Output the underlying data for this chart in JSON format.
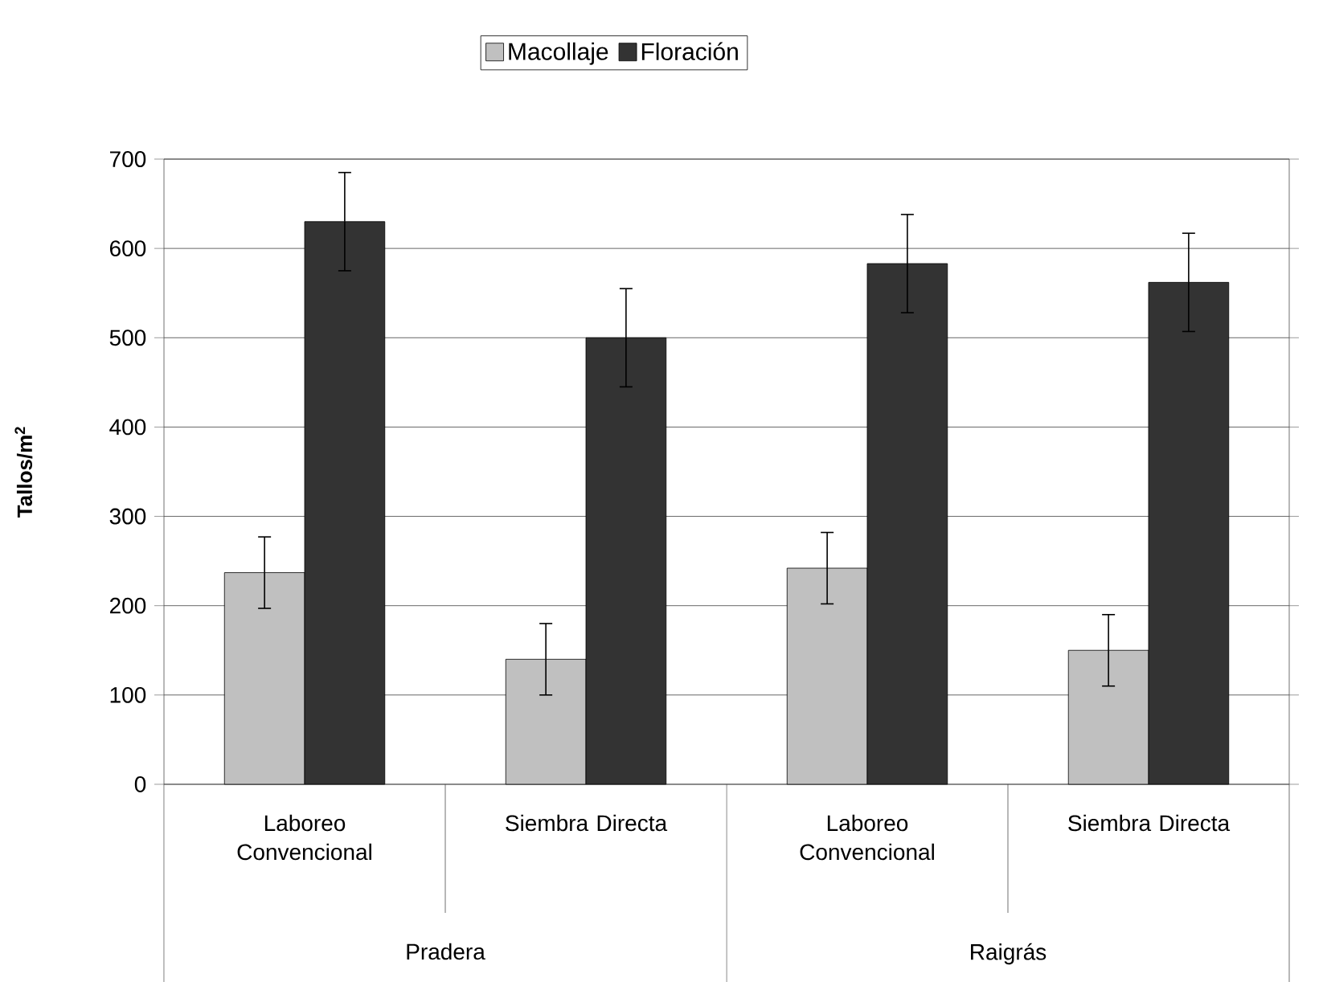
{
  "chart_data": {
    "type": "bar",
    "ylabel": "Tallos/m$^{2}$",
    "categories": [
      "Laboreo Convencional",
      "Siembra Directa",
      "Laboreo Convencional",
      "Siembra Directa"
    ],
    "series": [
      {
        "name": "Macollaje",
        "color": "#c0c0c0",
        "values": [
          237,
          140,
          242,
          150
        ],
        "errors": [
          40,
          40,
          40,
          40
        ]
      },
      {
        "name": "Floración",
        "color": "#333333",
        "values": [
          630,
          500,
          583,
          562
        ],
        "errors": [
          55,
          55,
          55,
          55
        ]
      }
    ],
    "annotations": [
      "Pradera",
      "Raigrás"
    ],
    "ylim": [
      0,
      700
    ],
    "yticks": [
      0,
      100,
      200,
      300,
      400,
      500,
      600,
      700
    ],
    "grid": "y",
    "legend": "top"
  }
}
